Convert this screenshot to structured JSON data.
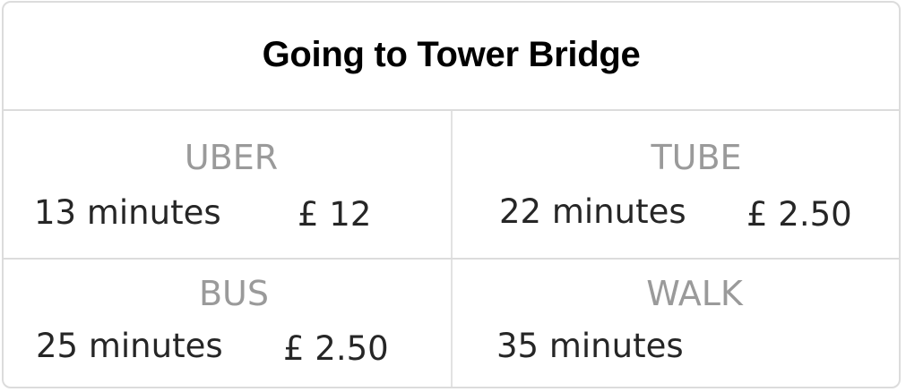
{
  "title": "Going to Tower Bridge",
  "options": [
    {
      "mode": "UBER",
      "duration": "13 minutes",
      "price": "£ 12"
    },
    {
      "mode": "TUBE",
      "duration": "22 minutes",
      "price": "£ 2.50"
    },
    {
      "mode": "BUS",
      "duration": "25 minutes",
      "price": "£ 2.50"
    },
    {
      "mode": "WALK",
      "duration": "35 minutes",
      "price": ""
    }
  ]
}
